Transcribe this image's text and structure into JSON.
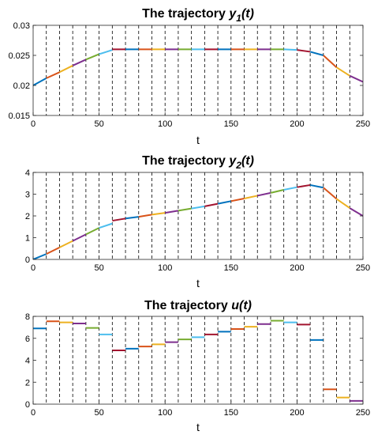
{
  "colors": [
    "#0072BD",
    "#D95319",
    "#EDB120",
    "#7E2F8E",
    "#77AC30",
    "#4DBEEE",
    "#A2142F"
  ],
  "chart_data": [
    {
      "type": "line",
      "title_main": "The trajectory",
      "title_var": "y",
      "title_sub": "1",
      "title_arg": "(t)",
      "xlabel": "t",
      "xlim": [
        0,
        250
      ],
      "ylim": [
        0.015,
        0.03
      ],
      "xticks": [
        0,
        50,
        100,
        150,
        200,
        250
      ],
      "yticks": [
        0.015,
        0.02,
        0.025,
        0.03
      ],
      "ytick_labels": [
        "0.015",
        "0.02",
        "0.025",
        "0.03"
      ],
      "dividers": [
        10,
        20,
        30,
        40,
        50,
        60,
        70,
        80,
        90,
        100,
        110,
        120,
        130,
        140,
        150,
        160,
        170,
        180,
        190,
        200,
        210,
        220,
        230,
        240
      ],
      "series": [
        {
          "x": [
            0,
            10
          ],
          "y": [
            0.02,
            0.0212
          ]
        },
        {
          "x": [
            10,
            20
          ],
          "y": [
            0.0212,
            0.0222
          ]
        },
        {
          "x": [
            20,
            30
          ],
          "y": [
            0.0222,
            0.0233
          ]
        },
        {
          "x": [
            30,
            40
          ],
          "y": [
            0.0233,
            0.0243
          ]
        },
        {
          "x": [
            40,
            50
          ],
          "y": [
            0.0243,
            0.0252
          ]
        },
        {
          "x": [
            50,
            60
          ],
          "y": [
            0.0252,
            0.0259
          ]
        },
        {
          "x": [
            60,
            70
          ],
          "y": [
            0.026,
            0.026
          ]
        },
        {
          "x": [
            70,
            80
          ],
          "y": [
            0.026,
            0.026
          ]
        },
        {
          "x": [
            80,
            90
          ],
          "y": [
            0.026,
            0.026
          ]
        },
        {
          "x": [
            90,
            100
          ],
          "y": [
            0.026,
            0.026
          ]
        },
        {
          "x": [
            100,
            110
          ],
          "y": [
            0.026,
            0.026
          ]
        },
        {
          "x": [
            110,
            120
          ],
          "y": [
            0.026,
            0.026
          ]
        },
        {
          "x": [
            120,
            130
          ],
          "y": [
            0.026,
            0.026
          ]
        },
        {
          "x": [
            130,
            140
          ],
          "y": [
            0.026,
            0.026
          ]
        },
        {
          "x": [
            140,
            150
          ],
          "y": [
            0.026,
            0.026
          ]
        },
        {
          "x": [
            150,
            160
          ],
          "y": [
            0.026,
            0.026
          ]
        },
        {
          "x": [
            160,
            170
          ],
          "y": [
            0.026,
            0.026
          ]
        },
        {
          "x": [
            170,
            180
          ],
          "y": [
            0.026,
            0.026
          ]
        },
        {
          "x": [
            180,
            190
          ],
          "y": [
            0.026,
            0.026
          ]
        },
        {
          "x": [
            190,
            200
          ],
          "y": [
            0.026,
            0.0259
          ]
        },
        {
          "x": [
            200,
            210
          ],
          "y": [
            0.0259,
            0.0256
          ]
        },
        {
          "x": [
            210,
            220
          ],
          "y": [
            0.0256,
            0.025
          ]
        },
        {
          "x": [
            220,
            230
          ],
          "y": [
            0.025,
            0.023
          ]
        },
        {
          "x": [
            230,
            240
          ],
          "y": [
            0.023,
            0.0216
          ]
        },
        {
          "x": [
            240,
            250
          ],
          "y": [
            0.0216,
            0.0206
          ]
        }
      ]
    },
    {
      "type": "line",
      "title_main": "The trajectory",
      "title_var": "y",
      "title_sub": "2",
      "title_arg": "(t)",
      "xlabel": "t",
      "xlim": [
        0,
        250
      ],
      "ylim": [
        0,
        4
      ],
      "xticks": [
        0,
        50,
        100,
        150,
        200,
        250
      ],
      "yticks": [
        0,
        1,
        2,
        3,
        4
      ],
      "ytick_labels": [
        "0",
        "1",
        "2",
        "3",
        "4"
      ],
      "dividers": [
        10,
        20,
        30,
        40,
        50,
        60,
        70,
        80,
        90,
        100,
        110,
        120,
        130,
        140,
        150,
        160,
        170,
        180,
        190,
        200,
        210,
        220,
        230,
        240
      ],
      "series": [
        {
          "x": [
            0,
            10
          ],
          "y": [
            0.0,
            0.25
          ]
        },
        {
          "x": [
            10,
            20
          ],
          "y": [
            0.25,
            0.55
          ]
        },
        {
          "x": [
            20,
            30
          ],
          "y": [
            0.55,
            0.85
          ]
        },
        {
          "x": [
            30,
            40
          ],
          "y": [
            0.85,
            1.15
          ]
        },
        {
          "x": [
            40,
            50
          ],
          "y": [
            1.15,
            1.45
          ]
        },
        {
          "x": [
            50,
            60
          ],
          "y": [
            1.45,
            1.65
          ]
        },
        {
          "x": [
            60,
            70
          ],
          "y": [
            1.78,
            1.88
          ]
        },
        {
          "x": [
            70,
            80
          ],
          "y": [
            1.88,
            1.96
          ]
        },
        {
          "x": [
            80,
            90
          ],
          "y": [
            1.96,
            2.06
          ]
        },
        {
          "x": [
            90,
            100
          ],
          "y": [
            2.06,
            2.14
          ]
        },
        {
          "x": [
            100,
            110
          ],
          "y": [
            2.14,
            2.24
          ]
        },
        {
          "x": [
            110,
            120
          ],
          "y": [
            2.24,
            2.34
          ]
        },
        {
          "x": [
            120,
            130
          ],
          "y": [
            2.34,
            2.44
          ]
        },
        {
          "x": [
            130,
            140
          ],
          "y": [
            2.44,
            2.56
          ]
        },
        {
          "x": [
            140,
            150
          ],
          "y": [
            2.56,
            2.68
          ]
        },
        {
          "x": [
            150,
            160
          ],
          "y": [
            2.68,
            2.8
          ]
        },
        {
          "x": [
            160,
            170
          ],
          "y": [
            2.8,
            2.93
          ]
        },
        {
          "x": [
            170,
            180
          ],
          "y": [
            2.93,
            3.06
          ]
        },
        {
          "x": [
            180,
            190
          ],
          "y": [
            3.06,
            3.2
          ]
        },
        {
          "x": [
            190,
            200
          ],
          "y": [
            3.2,
            3.32
          ]
        },
        {
          "x": [
            200,
            210
          ],
          "y": [
            3.32,
            3.42
          ]
        },
        {
          "x": [
            210,
            220
          ],
          "y": [
            3.42,
            3.3
          ]
        },
        {
          "x": [
            220,
            230
          ],
          "y": [
            3.3,
            2.78
          ]
        },
        {
          "x": [
            230,
            240
          ],
          "y": [
            2.78,
            2.36
          ]
        },
        {
          "x": [
            240,
            250
          ],
          "y": [
            2.36,
            2.0
          ]
        }
      ]
    },
    {
      "type": "line",
      "title_main": "The trajectory",
      "title_var": "u(t)",
      "title_sub": "",
      "title_arg": "",
      "xlabel": "t",
      "xlim": [
        0,
        250
      ],
      "ylim": [
        0,
        8
      ],
      "xticks": [
        0,
        50,
        100,
        150,
        200,
        250
      ],
      "yticks": [
        0,
        2,
        4,
        6,
        8
      ],
      "ytick_labels": [
        "0",
        "2",
        "4",
        "6",
        "8"
      ],
      "dividers": [
        10,
        20,
        30,
        40,
        50,
        60,
        70,
        80,
        90,
        100,
        110,
        120,
        130,
        140,
        150,
        160,
        170,
        180,
        190,
        200,
        210,
        220,
        230,
        240
      ],
      "series": [
        {
          "x": [
            0,
            10
          ],
          "y": [
            6.9,
            6.9
          ]
        },
        {
          "x": [
            10,
            20
          ],
          "y": [
            7.55,
            7.55
          ]
        },
        {
          "x": [
            20,
            30
          ],
          "y": [
            7.45,
            7.45
          ]
        },
        {
          "x": [
            30,
            40
          ],
          "y": [
            7.35,
            7.35
          ]
        },
        {
          "x": [
            40,
            50
          ],
          "y": [
            6.95,
            6.95
          ]
        },
        {
          "x": [
            50,
            60
          ],
          "y": [
            6.35,
            6.35
          ]
        },
        {
          "x": [
            60,
            70
          ],
          "y": [
            4.9,
            4.9
          ]
        },
        {
          "x": [
            70,
            80
          ],
          "y": [
            5.05,
            5.05
          ]
        },
        {
          "x": [
            80,
            90
          ],
          "y": [
            5.25,
            5.25
          ]
        },
        {
          "x": [
            90,
            100
          ],
          "y": [
            5.45,
            5.45
          ]
        },
        {
          "x": [
            100,
            110
          ],
          "y": [
            5.65,
            5.65
          ]
        },
        {
          "x": [
            110,
            120
          ],
          "y": [
            5.9,
            5.9
          ]
        },
        {
          "x": [
            120,
            130
          ],
          "y": [
            6.1,
            6.1
          ]
        },
        {
          "x": [
            130,
            140
          ],
          "y": [
            6.35,
            6.35
          ]
        },
        {
          "x": [
            140,
            150
          ],
          "y": [
            6.6,
            6.6
          ]
        },
        {
          "x": [
            150,
            160
          ],
          "y": [
            6.85,
            6.85
          ]
        },
        {
          "x": [
            160,
            170
          ],
          "y": [
            7.05,
            7.05
          ]
        },
        {
          "x": [
            170,
            180
          ],
          "y": [
            7.3,
            7.3
          ]
        },
        {
          "x": [
            180,
            190
          ],
          "y": [
            7.6,
            7.6
          ]
        },
        {
          "x": [
            190,
            200
          ],
          "y": [
            7.45,
            7.45
          ]
        },
        {
          "x": [
            200,
            210
          ],
          "y": [
            7.25,
            7.25
          ]
        },
        {
          "x": [
            210,
            220
          ],
          "y": [
            5.85,
            5.85
          ]
        },
        {
          "x": [
            220,
            230
          ],
          "y": [
            1.35,
            1.35
          ]
        },
        {
          "x": [
            230,
            240
          ],
          "y": [
            0.6,
            0.6
          ]
        },
        {
          "x": [
            240,
            250
          ],
          "y": [
            0.3,
            0.3
          ]
        }
      ]
    }
  ]
}
